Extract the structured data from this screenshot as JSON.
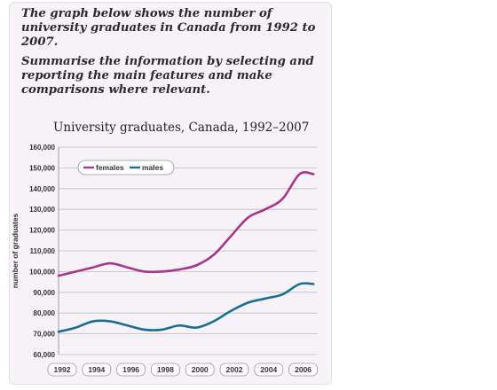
{
  "prompt": {
    "line1": "The graph below shows the number of university graduates in Canada from 1992 to 2007.",
    "line2": "Summarise the information by selecting and reporting the main features and make comparisons where relevant."
  },
  "colors": {
    "females": "#a8348f",
    "males": "#1a6e96"
  },
  "chart_data": {
    "type": "line",
    "title": "University graduates, Canada, 1992–2007",
    "xlabel": "",
    "ylabel": "number of graduates",
    "ylim": [
      60000,
      160000
    ],
    "xlim": [
      1992,
      2007
    ],
    "y_ticks": [
      "60,000",
      "70,000",
      "80,000",
      "90,000",
      "100,000",
      "110,000",
      "120,000",
      "130,000",
      "140,000",
      "150,000",
      "160,000"
    ],
    "x_ticks": [
      "1992",
      "1994",
      "1996",
      "1998",
      "2000",
      "2002",
      "2004",
      "2006"
    ],
    "grid": true,
    "legend_position": "top-left",
    "series": [
      {
        "name": "females",
        "x": [
          1992,
          1993,
          1994,
          1995,
          1996,
          1997,
          1998,
          1999,
          2000,
          2001,
          2002,
          2003,
          2004,
          2005,
          2006,
          2007
        ],
        "values": [
          98000,
          100000,
          102000,
          104000,
          102000,
          100000,
          100000,
          101000,
          103000,
          108000,
          117000,
          126000,
          130000,
          135000,
          147000,
          147000
        ]
      },
      {
        "name": "males",
        "x": [
          1992,
          1993,
          1994,
          1995,
          1996,
          1997,
          1998,
          1999,
          2000,
          2001,
          2002,
          2003,
          2004,
          2005,
          2006,
          2007
        ],
        "values": [
          71000,
          73000,
          76000,
          76000,
          74000,
          72000,
          72000,
          74000,
          73000,
          76000,
          81000,
          85000,
          87000,
          89000,
          94000,
          94000
        ]
      }
    ]
  }
}
